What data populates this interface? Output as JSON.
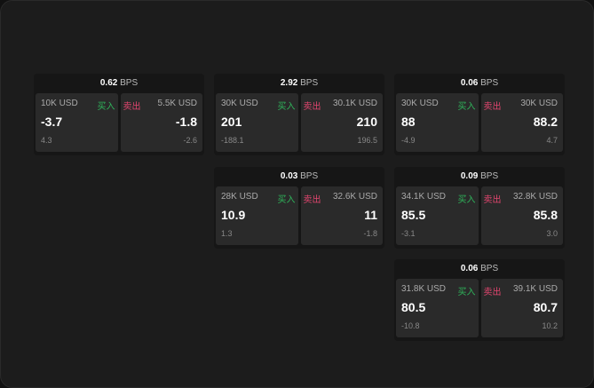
{
  "labels": {
    "buy": "买入",
    "sell": "卖出",
    "unit": "BPS"
  },
  "colors": {
    "buy": "#2fb35a",
    "sell": "#e0456e"
  },
  "cards": [
    {
      "bps": "0.62",
      "buy": {
        "qty": "10K USD",
        "price": "-3.7",
        "change": "4.3"
      },
      "sell": {
        "qty": "5.5K USD",
        "price": "-1.8",
        "change": "-2.6"
      }
    },
    {
      "bps": "2.92",
      "buy": {
        "qty": "30K USD",
        "price": "201",
        "change": "-188.1"
      },
      "sell": {
        "qty": "30.1K USD",
        "price": "210",
        "change": "196.5"
      }
    },
    {
      "bps": "0.06",
      "buy": {
        "qty": "30K USD",
        "price": "88",
        "change": "-4.9"
      },
      "sell": {
        "qty": "30K USD",
        "price": "88.2",
        "change": "4.7"
      }
    },
    {
      "bps": "0.03",
      "buy": {
        "qty": "28K USD",
        "price": "10.9",
        "change": "1.3"
      },
      "sell": {
        "qty": "32.6K USD",
        "price": "11",
        "change": "-1.8"
      }
    },
    {
      "bps": "0.09",
      "buy": {
        "qty": "34.1K USD",
        "price": "85.5",
        "change": "-3.1"
      },
      "sell": {
        "qty": "32.8K USD",
        "price": "85.8",
        "change": "3.0"
      }
    },
    {
      "bps": "0.06",
      "buy": {
        "qty": "31.8K USD",
        "price": "80.5",
        "change": "-10.8"
      },
      "sell": {
        "qty": "39.1K USD",
        "price": "80.7",
        "change": "10.2"
      }
    }
  ]
}
